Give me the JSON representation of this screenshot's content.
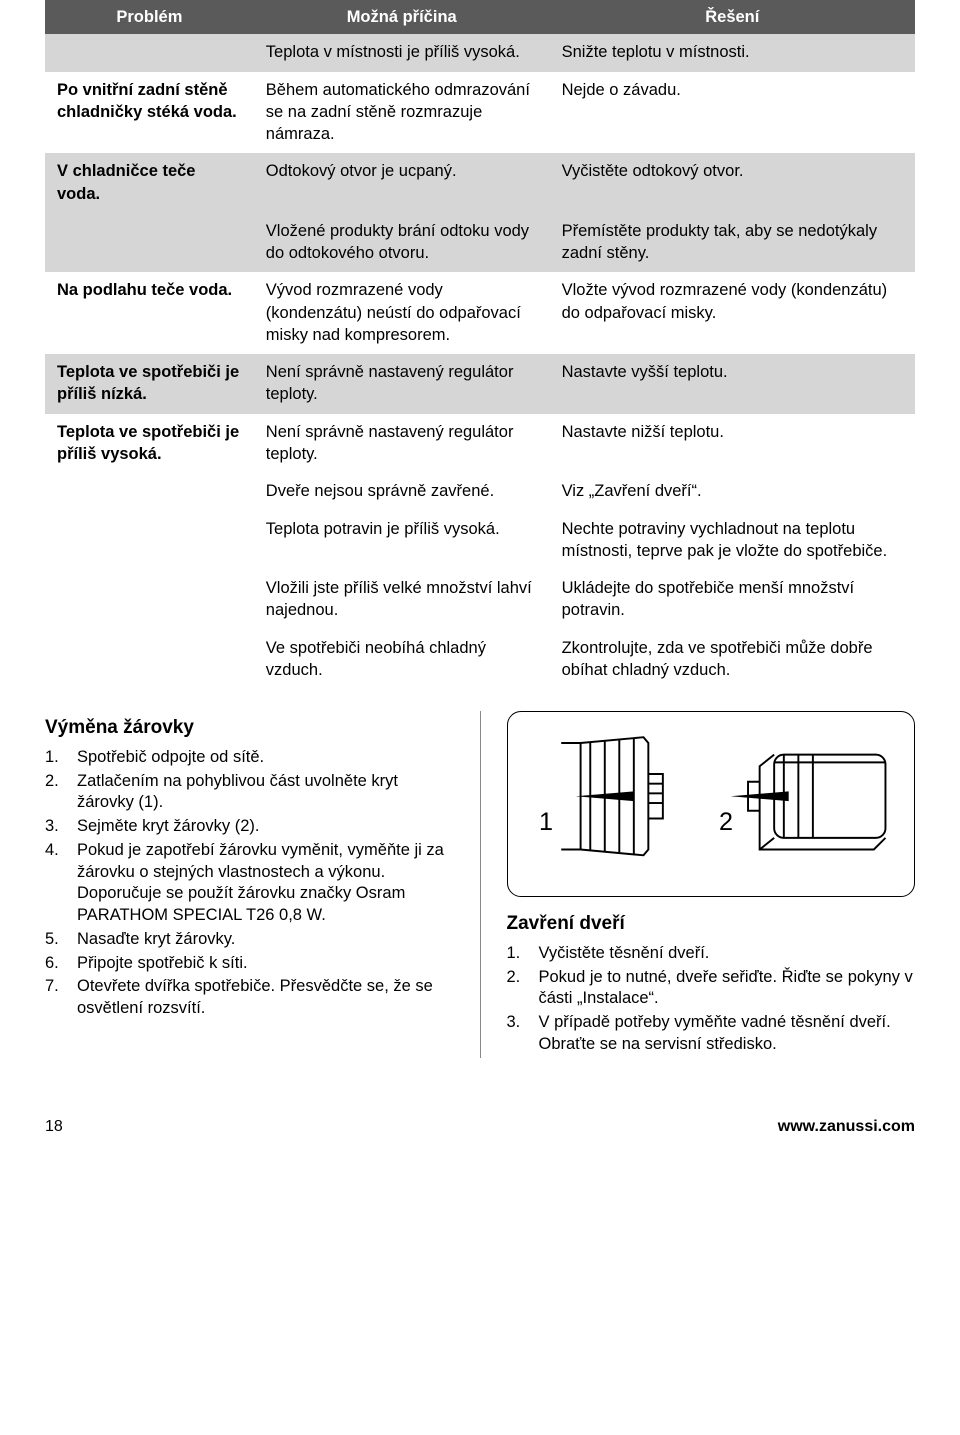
{
  "table": {
    "headers": [
      "Problém",
      "Možná příčina",
      "Řešení"
    ],
    "rows": [
      {
        "shade": "dark",
        "c0": "",
        "c1": "Teplota v místnosti je příliš vysoká.",
        "c2": "Snižte teplotu v místnosti."
      },
      {
        "shade": "light",
        "c0": "Po vnitřní zadní stěně chladničky stéká voda.",
        "c1": "Během automatického odmrazování se na zadní stěně rozmrazuje námraza.",
        "c2": "Nejde o závadu."
      },
      {
        "shade": "dark",
        "c0": "V chladničce teče voda.",
        "c1": "Odtokový otvor je ucpaný.",
        "c2": "Vyčistěte odtokový otvor."
      },
      {
        "shade": "dark",
        "c0": "",
        "c1": "Vložené produkty brání odtoku vody do odtokového otvoru.",
        "c2": "Přemístěte produkty tak, aby se nedotýkaly zadní stěny."
      },
      {
        "shade": "light",
        "c0": "Na podlahu teče voda.",
        "c1": "Vývod rozmrazené vody (kondenzátu) neústí do odpařovací misky nad kompresorem.",
        "c2": "Vložte vývod rozmrazené vody (kondenzátu) do odpařovací misky."
      },
      {
        "shade": "dark",
        "c0": "Teplota ve spotřebiči je příliš nízká.",
        "c1": "Není správně nastavený regulátor teploty.",
        "c2": "Nastavte vyšší teplotu."
      },
      {
        "shade": "light",
        "c0": "Teplota ve spotřebiči je příliš vysoká.",
        "c1": "Není správně nastavený regulátor teploty.",
        "c2": "Nastavte nižší teplotu."
      },
      {
        "shade": "light",
        "c0": "",
        "c1": "Dveře nejsou správně zavřené.",
        "c2": "Viz „Zavření dveří“."
      },
      {
        "shade": "light",
        "c0": "",
        "c1": "Teplota potravin je příliš vysoká.",
        "c2": "Nechte potraviny vychladnout na teplotu místnosti, teprve pak je vložte do spotřebiče."
      },
      {
        "shade": "light",
        "c0": "",
        "c1": "Vložili jste příliš velké množství lahví najednou.",
        "c2": "Ukládejte do spotřebiče menší množství potravin."
      },
      {
        "shade": "light",
        "c0": "",
        "c1": "Ve spotřebiči neobíhá chladný vzduch.",
        "c2": "Zkontrolujte, zda ve spotřebiči může dobře obíhat chladný vzduch."
      }
    ]
  },
  "left": {
    "heading": "Výměna žárovky",
    "items": [
      "Spotřebič odpojte od sítě.",
      "Zatlačením na pohyblivou část uvolněte kryt žárovky (1).",
      "Sejměte kryt žárovky (2).",
      "Pokud je zapotřebí žárovku vyměnit, vyměňte ji za žárovku o stejných vlastnostech a výkonu. Doporučuje se použít žárovku značky Osram PARATHOM SPECIAL T26 0,8 W.",
      "Nasaďte kryt žárovky.",
      "Připojte spotřebič k síti.",
      "Otevřete dvířka spotřebiče. Přesvědčte se, že se osvětlení rozsvítí."
    ]
  },
  "right": {
    "heading": "Zavření dveří",
    "items": [
      "Vyčistěte těsnění dveří.",
      "Pokud je to nutné, dveře seřiďte. Řiďte se pokyny v části „Instalace“.",
      "V případě potřeby vyměňte vadné těsnění dveří. Obraťte se na servisní středisko."
    ]
  },
  "diagram": {
    "label1": "1",
    "label2": "2"
  },
  "footer": {
    "page": "18",
    "url": "www.zanussi.com"
  }
}
